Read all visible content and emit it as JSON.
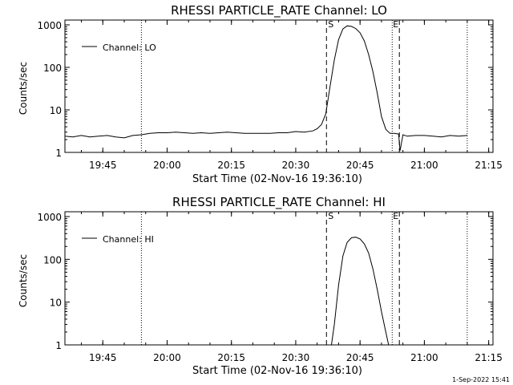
{
  "chart_data": [
    {
      "type": "line",
      "title": "RHESSI PARTICLE_RATE Channel: LO",
      "xlabel": "Start Time (02-Nov-16 19:36:10)",
      "ylabel": "Counts/sec",
      "yscale": "log",
      "ylim": [
        1,
        1000
      ],
      "ytick_labels": [
        "1",
        "10",
        "100",
        "1000"
      ],
      "xlim": [
        "19:36:10",
        "21:16:00"
      ],
      "xtick_labels": [
        "19:45",
        "20:00",
        "20:15",
        "20:30",
        "20:45",
        "21:00",
        "21:15"
      ],
      "legend": {
        "position": "top-left",
        "label": "Channel: LO"
      },
      "markers": [
        {
          "label": "S",
          "time": "20:37:10",
          "style": "dashed"
        },
        {
          "label": "E",
          "time": "20:54:10",
          "style": "dashed"
        }
      ],
      "dotted_lines": [
        "19:54:00",
        "20:52:30",
        "21:10:00"
      ],
      "series": [
        {
          "name": "Channel: LO",
          "x": [
            "19:36:10",
            "19:38:00",
            "19:40:00",
            "19:42:00",
            "19:44:00",
            "19:46:00",
            "19:48:00",
            "19:50:00",
            "19:52:00",
            "19:54:00",
            "19:56:00",
            "19:58:00",
            "20:00:00",
            "20:02:00",
            "20:04:00",
            "20:06:00",
            "20:08:00",
            "20:10:00",
            "20:12:00",
            "20:14:00",
            "20:16:00",
            "20:18:00",
            "20:20:00",
            "20:22:00",
            "20:24:00",
            "20:26:00",
            "20:28:00",
            "20:30:00",
            "20:32:00",
            "20:34:00",
            "20:35:00",
            "20:36:00",
            "20:37:00",
            "20:38:00",
            "20:39:00",
            "20:40:00",
            "20:41:00",
            "20:42:00",
            "20:43:00",
            "20:44:00",
            "20:45:00",
            "20:46:00",
            "20:47:00",
            "20:48:00",
            "20:49:00",
            "20:50:00",
            "20:51:00",
            "20:52:00",
            "20:53:00",
            "20:54:00",
            "20:54:20",
            "20:55:00",
            "20:56:00",
            "20:58:00",
            "21:00:00",
            "21:02:00",
            "21:04:00",
            "21:06:00",
            "21:08:00",
            "21:10:00"
          ],
          "y": [
            2.4,
            2.3,
            2.5,
            2.3,
            2.4,
            2.5,
            2.3,
            2.2,
            2.5,
            2.6,
            2.8,
            2.9,
            2.9,
            3.0,
            2.9,
            2.8,
            2.9,
            2.8,
            2.9,
            3.0,
            2.9,
            2.8,
            2.8,
            2.8,
            2.8,
            2.9,
            2.9,
            3.1,
            3.0,
            3.2,
            3.6,
            4.5,
            8,
            35,
            150,
            450,
            800,
            950,
            920,
            820,
            650,
            420,
            200,
            80,
            25,
            7,
            3.5,
            2.8,
            2.8,
            2.7,
            1.1,
            2.6,
            2.4,
            2.5,
            2.5,
            2.4,
            2.3,
            2.5,
            2.4,
            2.5
          ]
        }
      ]
    },
    {
      "type": "line",
      "title": "RHESSI PARTICLE_RATE Channel: HI",
      "xlabel": "Start Time (02-Nov-16 19:36:10)",
      "ylabel": "Counts/sec",
      "yscale": "log",
      "ylim": [
        1,
        1000
      ],
      "ytick_labels": [
        "1",
        "10",
        "100",
        "1000"
      ],
      "xlim": [
        "19:36:10",
        "21:16:00"
      ],
      "xtick_labels": [
        "19:45",
        "20:00",
        "20:15",
        "20:30",
        "20:45",
        "21:00",
        "21:15"
      ],
      "legend": {
        "position": "top-left",
        "label": "Channel: HI"
      },
      "markers": [
        {
          "label": "S",
          "time": "20:37:10",
          "style": "dashed"
        },
        {
          "label": "E",
          "time": "20:54:10",
          "style": "dashed"
        }
      ],
      "dotted_lines": [
        "19:54:00",
        "20:52:30",
        "21:10:00"
      ],
      "series": [
        {
          "name": "Channel: HI",
          "x": [
            "20:38:20",
            "20:39:00",
            "20:40:00",
            "20:41:00",
            "20:42:00",
            "20:43:00",
            "20:44:00",
            "20:45:00",
            "20:46:00",
            "20:47:00",
            "20:48:00",
            "20:49:00",
            "20:50:00",
            "20:51:00",
            "20:51:40"
          ],
          "y": [
            1,
            3,
            25,
            120,
            250,
            320,
            330,
            300,
            230,
            140,
            60,
            20,
            6,
            2,
            1
          ]
        }
      ]
    }
  ],
  "footer": {
    "timestamp": "1-Sep-2022 15:41"
  }
}
